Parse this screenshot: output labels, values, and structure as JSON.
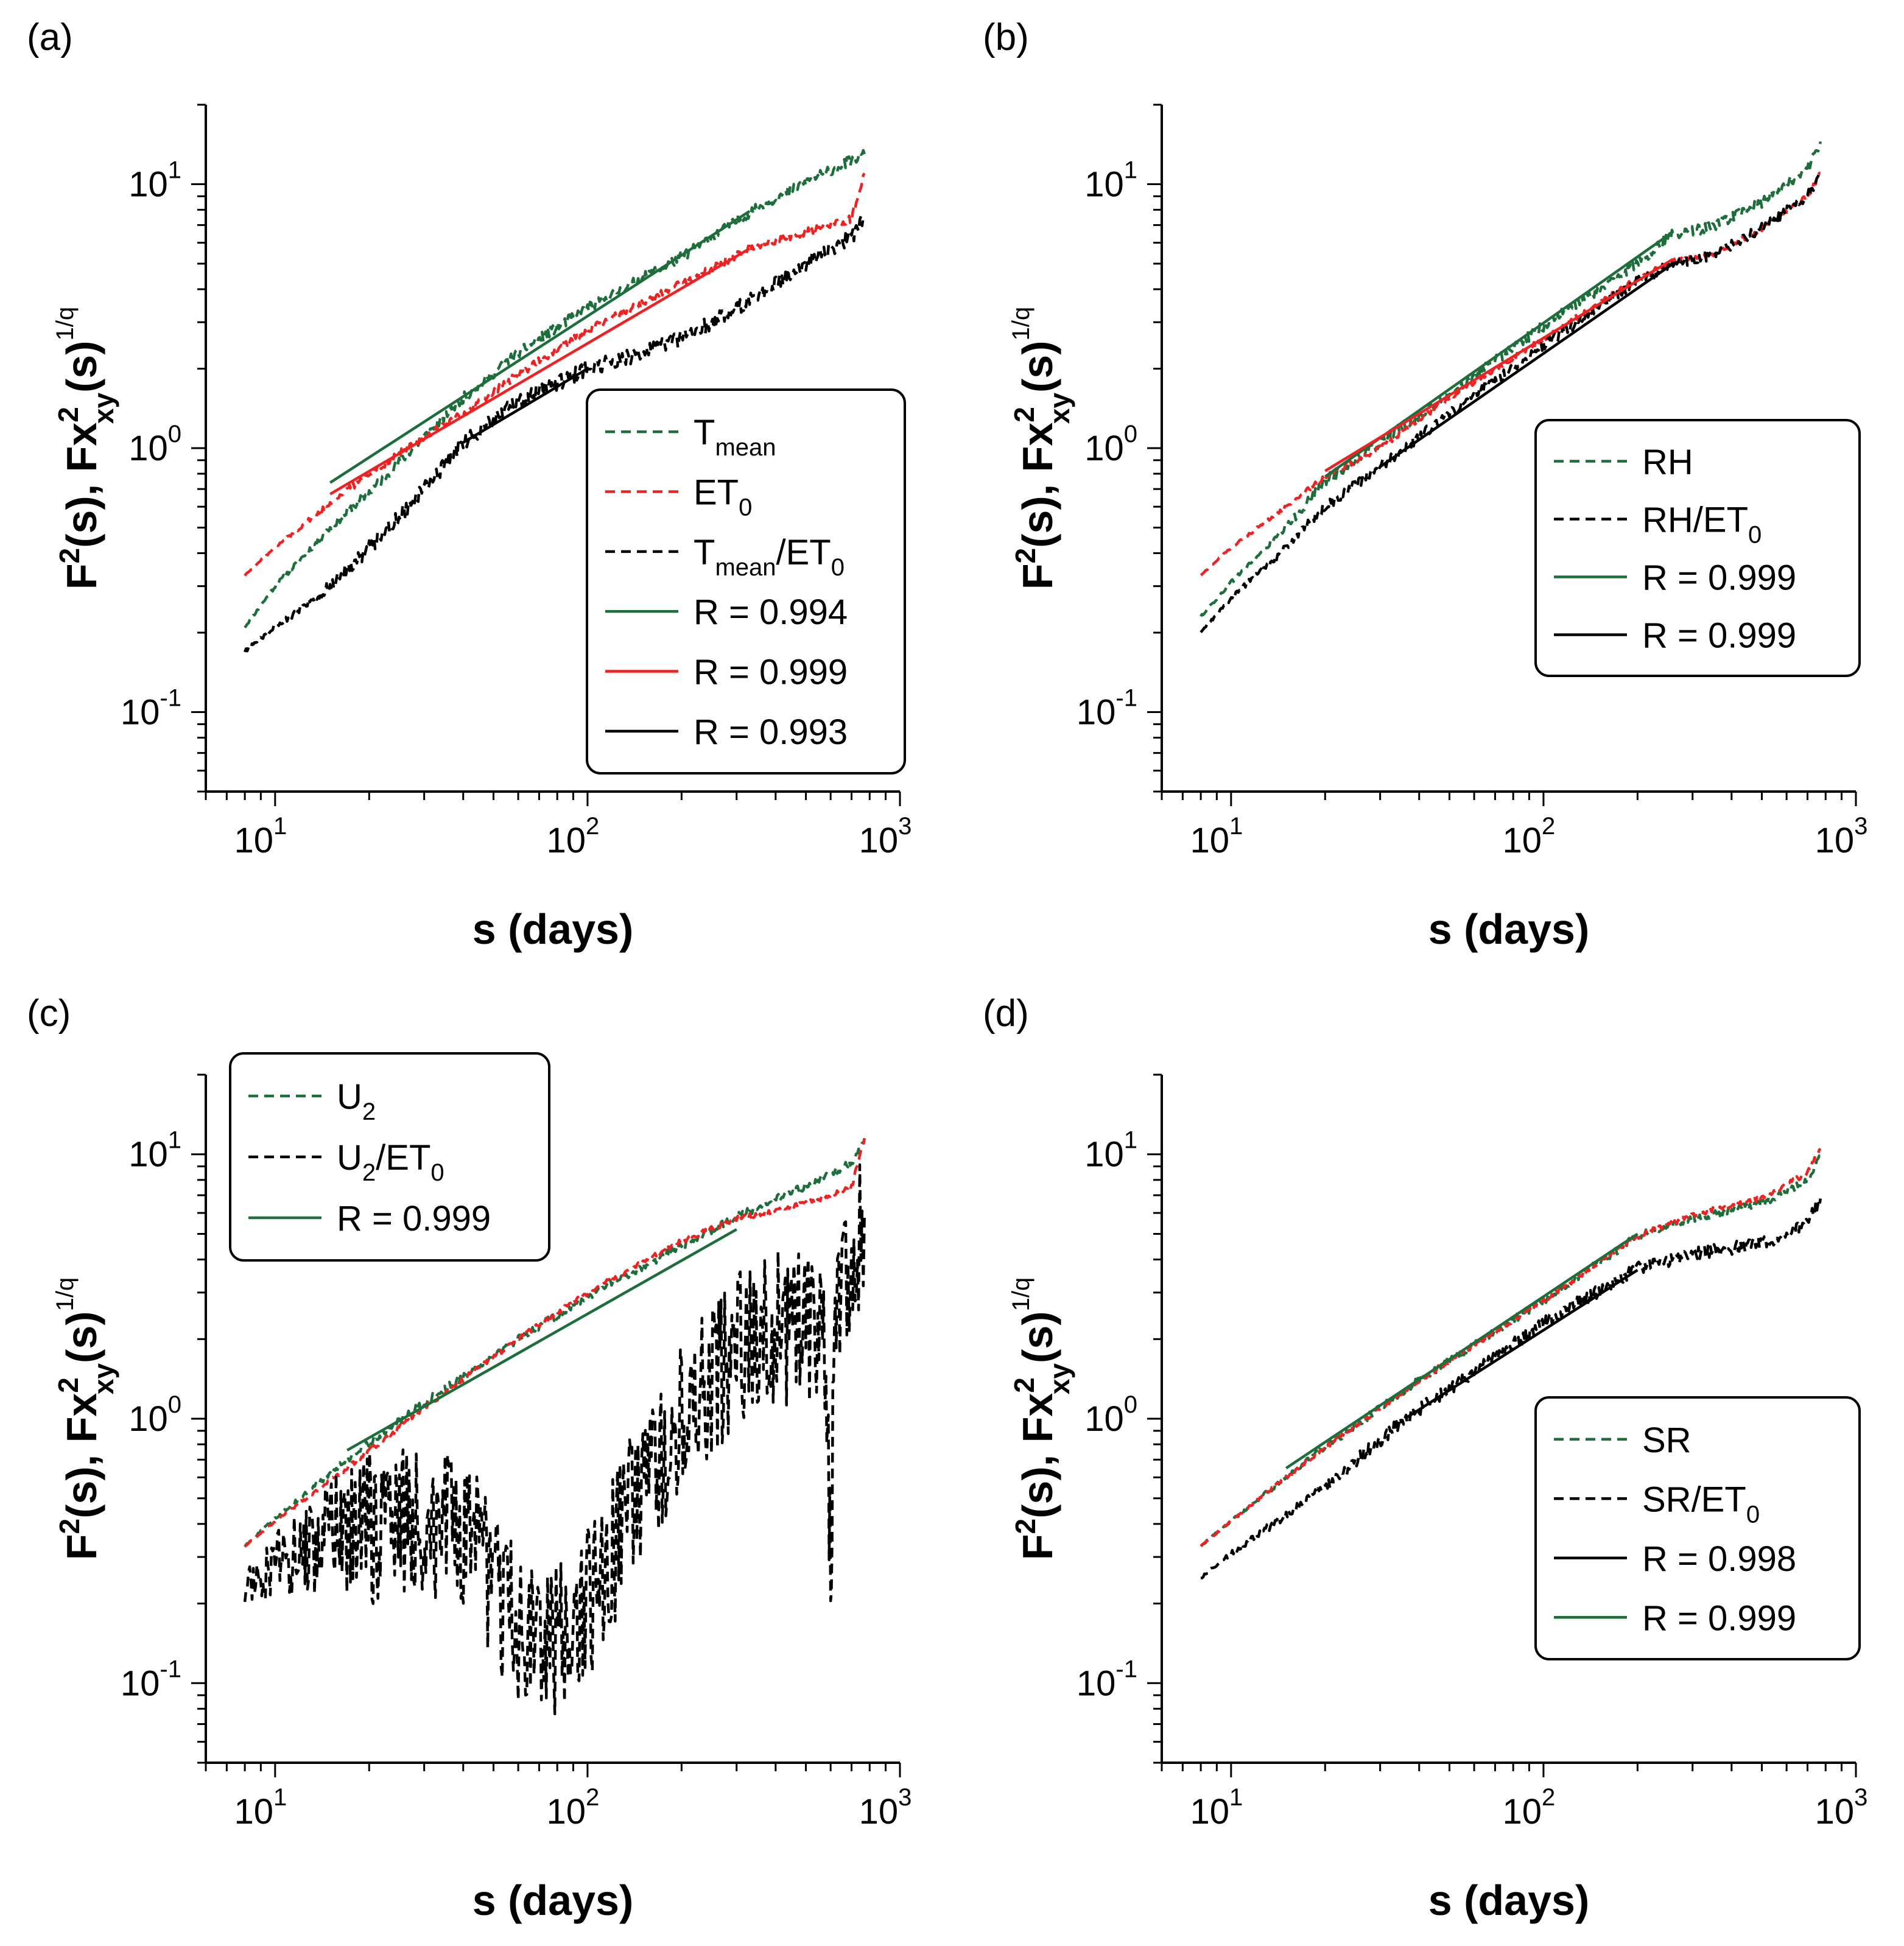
{
  "chart_data": [
    {
      "type": "line",
      "panel_label": "(a)",
      "xscale": "log",
      "yscale": "log",
      "xlim": [
        6,
        1000
      ],
      "ylim": [
        0.05,
        20
      ],
      "xlabel": "s (days)",
      "ylabel": {
        "text": "F2(s), Fxy2(s)1/q"
      },
      "xticks": [
        {
          "base": "10",
          "exp": "1"
        },
        {
          "base": "10",
          "exp": "2"
        },
        {
          "base": "10",
          "exp": "3"
        }
      ],
      "yticks": [
        {
          "base": "10",
          "exp": "-1"
        },
        {
          "base": "10",
          "exp": "0"
        },
        {
          "base": "10",
          "exp": "1"
        }
      ],
      "legend_position": "center-right",
      "series": [
        {
          "name": "T_mean",
          "label": "T",
          "sub": "mean",
          "tail": "",
          "color": "#1e6e3c",
          "style": "dashed",
          "noise": 0.02,
          "x": [
            8,
            10,
            15,
            20,
            30,
            40,
            60,
            100,
            200,
            330,
            500,
            700,
            770
          ],
          "y": [
            0.21,
            0.3,
            0.5,
            0.68,
            1.1,
            1.55,
            2.3,
            3.4,
            5.3,
            7.8,
            10.2,
            12.3,
            13
          ]
        },
        {
          "name": "ET_0",
          "label": "ET",
          "sub": "0",
          "tail": "",
          "color": "#ee2222",
          "style": "dashed",
          "noise": 0.015,
          "x": [
            8,
            10,
            15,
            20,
            30,
            40,
            60,
            100,
            200,
            330,
            500,
            700,
            770
          ],
          "y": [
            0.33,
            0.42,
            0.62,
            0.8,
            1.1,
            1.35,
            1.9,
            2.8,
            4.2,
            5.7,
            6.6,
            7.4,
            11
          ]
        },
        {
          "name": "T_mean/ET_0",
          "label": "T",
          "sub": "mean",
          "tail": "/ET",
          "sub2": "0",
          "color": "#000000",
          "style": "dashed",
          "noise": 0.03,
          "x": [
            8,
            10,
            15,
            20,
            30,
            40,
            60,
            100,
            150,
            200,
            330,
            500,
            700,
            770
          ],
          "y": [
            0.17,
            0.21,
            0.3,
            0.42,
            0.7,
            1.05,
            1.5,
            2.0,
            2.3,
            2.6,
            3.6,
            5.0,
            6.3,
            7.5
          ]
        },
        {
          "name": "R = 0.994",
          "label": "R = 0.994",
          "color": "#1e6e3c",
          "style": "solid",
          "x": [
            15,
            330
          ],
          "y": [
            0.74,
            7.9
          ]
        },
        {
          "name": "R = 0.999",
          "label": "R = 0.999",
          "color": "#ee2222",
          "style": "solid",
          "x": [
            15,
            330
          ],
          "y": [
            0.67,
            5.7
          ]
        },
        {
          "name": "R = 0.993",
          "label": "R = 0.993",
          "color": "#000000",
          "style": "solid",
          "x": [
            40,
            100
          ],
          "y": [
            1.05,
            2.0
          ]
        }
      ]
    },
    {
      "type": "line",
      "panel_label": "(b)",
      "xscale": "log",
      "yscale": "log",
      "xlim": [
        6,
        1000
      ],
      "ylim": [
        0.05,
        20
      ],
      "xlabel": "s (days)",
      "ylabel": {
        "text": "F2(s), Fxy2(s)1/q"
      },
      "xticks": [
        {
          "base": "10",
          "exp": "1"
        },
        {
          "base": "10",
          "exp": "2"
        },
        {
          "base": "10",
          "exp": "3"
        }
      ],
      "yticks": [
        {
          "base": "10",
          "exp": "-1"
        },
        {
          "base": "10",
          "exp": "0"
        },
        {
          "base": "10",
          "exp": "1"
        }
      ],
      "legend_position": "center-right",
      "series": [
        {
          "name": "RH",
          "label": "RH",
          "color": "#1e6e3c",
          "style": "dashed",
          "noise": 0.02,
          "x": [
            8,
            10,
            15,
            20,
            30,
            50,
            100,
            200,
            260,
            350,
            500,
            700,
            770
          ],
          "y": [
            0.23,
            0.31,
            0.5,
            0.75,
            1.05,
            1.6,
            2.9,
            5.0,
            6.5,
            6.9,
            8.5,
            11.5,
            14.5
          ]
        },
        {
          "name": "ET_0",
          "label": "",
          "legend": false,
          "color": "#ee2222",
          "style": "dashed",
          "noise": 0.01,
          "x": [
            8,
            10,
            15,
            20,
            30,
            50,
            100,
            200,
            260,
            350,
            500,
            700,
            770
          ],
          "y": [
            0.33,
            0.42,
            0.6,
            0.78,
            1.0,
            1.55,
            2.6,
            4.4,
            5.1,
            5.4,
            6.8,
            9.0,
            11.0
          ]
        },
        {
          "name": "RH/ET_0",
          "label": "RH/ET",
          "sub": "0",
          "color": "#000000",
          "style": "dashed",
          "noise": 0.02,
          "x": [
            8,
            10,
            15,
            20,
            30,
            50,
            100,
            200,
            260,
            350,
            500,
            700,
            770
          ],
          "y": [
            0.2,
            0.27,
            0.42,
            0.6,
            0.85,
            1.35,
            2.45,
            4.3,
            5.0,
            5.4,
            6.8,
            9.0,
            11.0
          ]
        },
        {
          "name": "R = 0.999 (RH)",
          "label": "R = 0.999",
          "color": "#1e6e3c",
          "style": "solid",
          "x": [
            20,
            260
          ],
          "y": [
            0.78,
            6.6
          ]
        },
        {
          "name": "fit ET_0",
          "label": "",
          "legend": false,
          "color": "#ee2222",
          "style": "solid",
          "x": [
            20,
            260
          ],
          "y": [
            0.82,
            5.2
          ]
        },
        {
          "name": "R = 0.999 (RH/ET0)",
          "label": "R = 0.999",
          "color": "#000000",
          "style": "solid",
          "x": [
            30,
            260
          ],
          "y": [
            0.85,
            5.0
          ]
        }
      ]
    },
    {
      "type": "line",
      "panel_label": "(c)",
      "xscale": "log",
      "yscale": "log",
      "xlim": [
        6,
        1000
      ],
      "ylim": [
        0.05,
        20
      ],
      "xlabel": "s (days)",
      "ylabel": {
        "text": "F2(s), Fxy2(s)1/q"
      },
      "xticks": [
        {
          "base": "10",
          "exp": "1"
        },
        {
          "base": "10",
          "exp": "2"
        },
        {
          "base": "10",
          "exp": "3"
        }
      ],
      "yticks": [
        {
          "base": "10",
          "exp": "-1"
        },
        {
          "base": "10",
          "exp": "0"
        },
        {
          "base": "10",
          "exp": "1"
        }
      ],
      "legend_position": "top-left",
      "series": [
        {
          "name": "U_2",
          "label": "U",
          "sub": "2",
          "color": "#1e6e3c",
          "style": "dashed",
          "noise": 0.015,
          "x": [
            8,
            10,
            17,
            30,
            60,
            100,
            200,
            300,
            500,
            700,
            770
          ],
          "y": [
            0.33,
            0.42,
            0.7,
            1.15,
            2.0,
            2.9,
            4.5,
            5.8,
            7.6,
            9.3,
            11.5
          ]
        },
        {
          "name": "ET_0",
          "label": "",
          "legend": false,
          "color": "#ee2222",
          "style": "dashed",
          "noise": 0.01,
          "x": [
            8,
            10,
            17,
            30,
            60,
            100,
            200,
            300,
            500,
            700,
            770
          ],
          "y": [
            0.33,
            0.41,
            0.65,
            1.1,
            2.0,
            3.0,
            4.7,
            5.7,
            6.5,
            7.5,
            11.5
          ]
        },
        {
          "name": "U_2/ET_0",
          "label": "U",
          "sub": "2",
          "tail": "/ET",
          "sub2": "0",
          "color": "#000000",
          "style": "dashed",
          "noise": 0.3,
          "x": [
            8,
            10,
            15,
            25,
            35,
            45,
            60,
            80,
            100,
            140,
            200,
            300,
            400,
            500,
            580,
            600,
            620,
            700,
            770
          ],
          "y": [
            0.23,
            0.28,
            0.36,
            0.42,
            0.4,
            0.3,
            0.16,
            0.14,
            0.2,
            0.45,
            1.0,
            1.9,
            2.2,
            2.3,
            2.1,
            0.28,
            2.5,
            4.0,
            6.0
          ]
        },
        {
          "name": "R = 0.999",
          "label": "R = 0.999",
          "color": "#1e6e3c",
          "style": "solid",
          "x": [
            17,
            300
          ],
          "y": [
            0.76,
            5.2
          ]
        }
      ]
    },
    {
      "type": "line",
      "panel_label": "(d)",
      "xscale": "log",
      "yscale": "log",
      "xlim": [
        6,
        1000
      ],
      "ylim": [
        0.05,
        20
      ],
      "xlabel": "s (days)",
      "ylabel": {
        "text": "F2(s), Fxy2(s)1/q"
      },
      "xticks": [
        {
          "base": "10",
          "exp": "1"
        },
        {
          "base": "10",
          "exp": "2"
        },
        {
          "base": "10",
          "exp": "3"
        }
      ],
      "yticks": [
        {
          "base": "10",
          "exp": "-1"
        },
        {
          "base": "10",
          "exp": "0"
        },
        {
          "base": "10",
          "exp": "1"
        }
      ],
      "legend_position": "center-right",
      "series": [
        {
          "name": "SR",
          "label": "SR",
          "color": "#1e6e3c",
          "style": "dashed",
          "noise": 0.015,
          "x": [
            8,
            10,
            15,
            20,
            40,
            100,
            200,
            300,
            500,
            700,
            770
          ],
          "y": [
            0.33,
            0.41,
            0.6,
            0.78,
            1.4,
            2.8,
            4.9,
            5.7,
            6.5,
            8.0,
            9.8
          ]
        },
        {
          "name": "ET_0",
          "label": "",
          "legend": false,
          "color": "#ee2222",
          "style": "dashed",
          "noise": 0.01,
          "x": [
            8,
            10,
            15,
            20,
            40,
            100,
            200,
            300,
            500,
            700,
            770
          ],
          "y": [
            0.33,
            0.41,
            0.6,
            0.78,
            1.4,
            2.8,
            4.9,
            5.9,
            6.8,
            8.5,
            10.5
          ]
        },
        {
          "name": "SR/ET_0",
          "label": "SR/ET",
          "sub": "0",
          "color": "#000000",
          "style": "dashed",
          "noise": 0.025,
          "x": [
            8,
            10,
            15,
            20,
            36,
            60,
            100,
            200,
            300,
            500,
            600,
            700,
            770
          ],
          "y": [
            0.25,
            0.31,
            0.43,
            0.55,
            1.0,
            1.5,
            2.3,
            3.7,
            4.2,
            4.6,
            5.0,
            5.6,
            6.8
          ]
        },
        {
          "name": "R = 0.998",
          "label": "R = 0.998",
          "color": "#000000",
          "style": "solid",
          "x": [
            36,
            200
          ],
          "y": [
            1.0,
            3.65
          ]
        },
        {
          "name": "R = 0.999",
          "label": "R = 0.999",
          "color": "#1e6e3c",
          "style": "solid",
          "x": [
            15,
            200
          ],
          "y": [
            0.65,
            5.0
          ]
        }
      ]
    }
  ]
}
